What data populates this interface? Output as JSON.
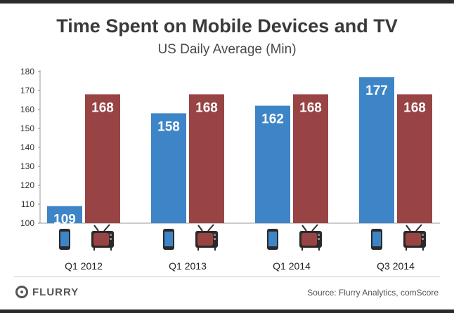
{
  "title": "Time Spent on Mobile Devices and TV",
  "subtitle": "US Daily Average (Min)",
  "chart_data": {
    "type": "bar",
    "title": "Time Spent on Mobile Devices and TV",
    "subtitle": "US Daily Average (Min)",
    "categories": [
      "Q1 2012",
      "Q1 2013",
      "Q1 2014",
      "Q3 2014"
    ],
    "series": [
      {
        "values": [
          109,
          158,
          162,
          177
        ],
        "color": "#3d85c6",
        "icon": "mobile-phone-icon"
      },
      {
        "values": [
          168,
          168,
          168,
          168
        ],
        "color": "#994444",
        "icon": "tv-icon"
      }
    ],
    "ylim": [
      100,
      180
    ],
    "yticks": [
      100,
      110,
      120,
      130,
      140,
      150,
      160,
      170,
      180
    ],
    "grid": false,
    "legend": "icons-below-bars"
  },
  "footer": {
    "logo": "FLURRY",
    "source": "Source: Flurry Analytics, comScore"
  }
}
